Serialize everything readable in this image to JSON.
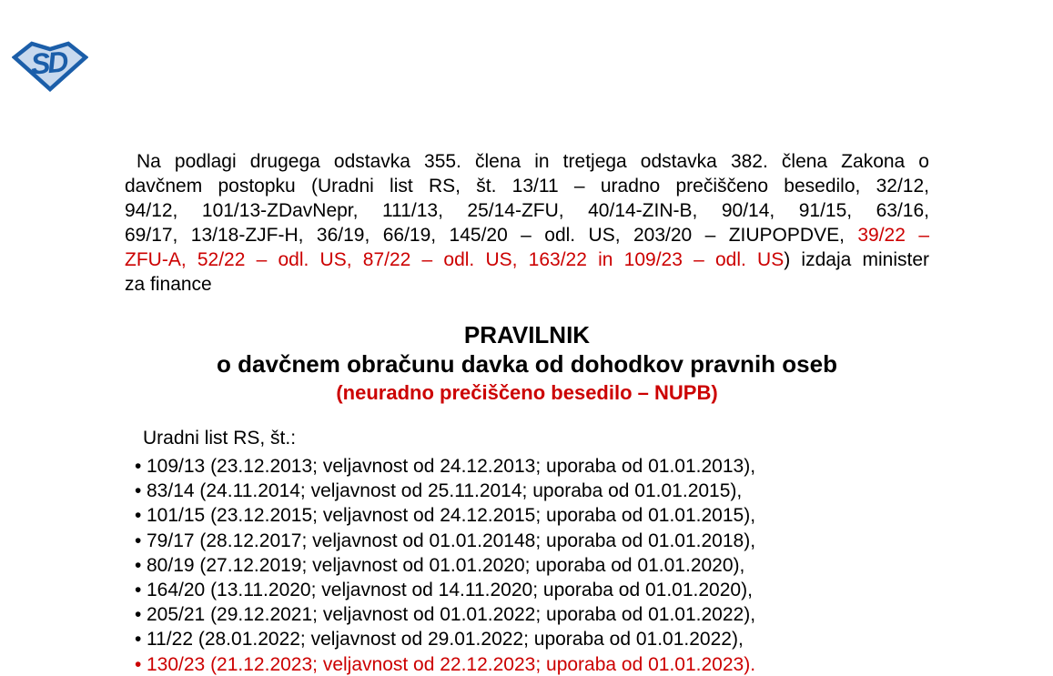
{
  "colors": {
    "text": "#000000",
    "accent_red": "#cc0000",
    "logo_dark_blue": "#1b5ea9",
    "logo_light_blue": "#c8d9ee"
  },
  "logo": {
    "letters": "SD"
  },
  "intro_paragraph": {
    "lines": [
      {
        "indent": true,
        "justify": true,
        "segments": [
          {
            "text": "Na podlagi drugega odstavka 355. člena in tretjega odstavka 382. člena Zakona o",
            "red": false
          }
        ]
      },
      {
        "indent": false,
        "justify": true,
        "segments": [
          {
            "text": "davčnem postopku (Uradni list RS, št. 13/11 – uradno prečiščeno besedilo, 32/12,",
            "red": false
          }
        ]
      },
      {
        "indent": false,
        "justify": true,
        "segments": [
          {
            "text": "94/12, 101/13-ZDavNepr, 111/13, 25/14-ZFU, 40/14-ZIN-B, 90/14, 91/15, 63/16,",
            "red": false
          }
        ]
      },
      {
        "indent": false,
        "justify": true,
        "segments": [
          {
            "text": "69/17, 13/18-ZJF-H, 36/19, 66/19, 145/20 – odl. US, 203/20 – ZIUPOPDVE, ",
            "red": false
          },
          {
            "text": "39/22 –",
            "red": true
          }
        ]
      },
      {
        "indent": false,
        "justify": true,
        "segments": [
          {
            "text": "ZFU-A, 52/22 – odl. US, 87/22 – odl. US, 163/22 in 109/23 – odl. US",
            "red": true
          },
          {
            "text": ") izdaja minister",
            "red": false
          }
        ]
      },
      {
        "indent": false,
        "justify": false,
        "segments": [
          {
            "text": "za finance",
            "red": false
          }
        ]
      }
    ]
  },
  "title_block": {
    "title": "PRAVILNIK",
    "subtitle": "o davčnem obračunu davka od dohodkov pravnih oseb",
    "note": "(neuradno prečiščeno besedilo – NUPB)"
  },
  "gazette_list": {
    "header": "Uradni list RS, št.:",
    "bullet": "•",
    "items": [
      {
        "text": "109/13 (23.12.2013; veljavnost od 24.12.2013; uporaba od 01.01.2013),",
        "red": false
      },
      {
        "text": "83/14 (24.11.2014; veljavnost od 25.11.2014; uporaba od 01.01.2015),",
        "red": false
      },
      {
        "text": "101/15 (23.12.2015; veljavnost od 24.12.2015; uporaba od 01.01.2015),",
        "red": false
      },
      {
        "text": "79/17 (28.12.2017; veljavnost od 01.01.20148; uporaba od 01.01.2018),",
        "red": false
      },
      {
        "text": "80/19 (27.12.2019; veljavnost od 01.01.2020; uporaba od 01.01.2020),",
        "red": false
      },
      {
        "text": "164/20 (13.11.2020; veljavnost od 14.11.2020; uporaba od 01.01.2020),",
        "red": false
      },
      {
        "text": "205/21 (29.12.2021; veljavnost od 01.01.2022; uporaba od 01.01.2022),",
        "red": false
      },
      {
        "text": "11/22 (28.01.2022; veljavnost od 29.01.2022; uporaba od 01.01.2022),",
        "red": false
      },
      {
        "text": "130/23 (21.12.2023; veljavnost od 22.12.2023; uporaba od 01.01.2023).",
        "red": true
      }
    ]
  }
}
